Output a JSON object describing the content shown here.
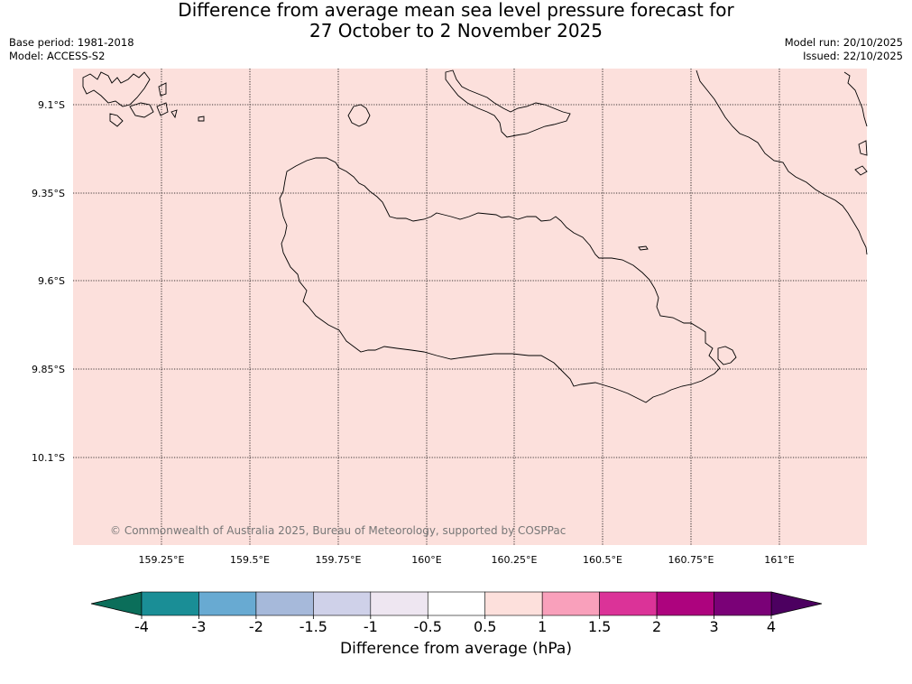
{
  "header": {
    "title_line1": "Difference from average mean sea level pressure forecast for",
    "title_line2": "27 October to 2 November 2025",
    "base_period": "Base period: 1981-2018",
    "model": "Model: ACCESS-S2",
    "model_run": "Model run: 20/10/2025",
    "issued": "Issued: 22/10/2025"
  },
  "map": {
    "fill_color": "#fce0dc",
    "copyright": "© Commonwealth of Australia 2025, Bureau of Meteorology, supported by COSPPac",
    "lat_labels": [
      "9.1°S",
      "9.35°S",
      "9.6°S",
      "9.85°S",
      "10.1°S"
    ],
    "lon_labels": [
      "159.25°E",
      "159.5°E",
      "159.75°E",
      "160°E",
      "160.25°E",
      "160.5°E",
      "160.75°E",
      "161°E"
    ]
  },
  "colorbar": {
    "label": "Difference from average (hPa)",
    "ticks": [
      "-4",
      "-3",
      "-2",
      "-1.5",
      "-1",
      "-0.5",
      "0.5",
      "1",
      "1.5",
      "2",
      "3",
      "4"
    ],
    "colors": [
      "#1a8e96",
      "#68aad2",
      "#a6b9da",
      "#cfd1e9",
      "#eee6f1",
      "#ffffff",
      "#fde0dc",
      "#f9a0bb",
      "#db3398",
      "#ad037e",
      "#7a0177"
    ],
    "extend_low_color": "#0b6e5a",
    "extend_high_color": "#4c0060"
  }
}
